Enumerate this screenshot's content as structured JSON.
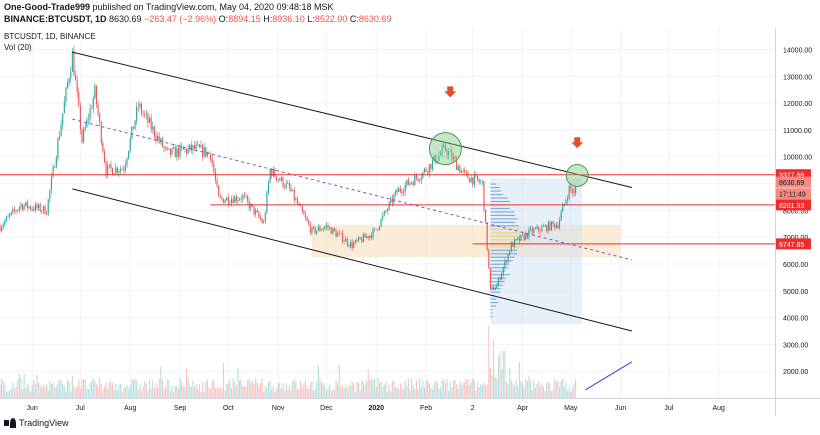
{
  "header": {
    "author": "One-Good-Trade999",
    "published": "published on TradingView.com, May 04, 2020 09:48:18 MSK",
    "symbol": "BINANCE:BTCUSDT, 1D",
    "last": "8630.69",
    "change": "−263.47 (−2.96%)",
    "o_label": "O:",
    "o_value": "8894.15",
    "h_label": "H:",
    "h_value": "8936.10",
    "l_label": "L:",
    "l_value": "8522.00",
    "c_label": "C:",
    "c_value": "8630.69"
  },
  "footer": {
    "brand": "TradingView"
  },
  "colors": {
    "up": "#26a69a",
    "down": "#ef5350",
    "channel": "#131722",
    "hline": "#ef2b2b",
    "box_orange": "#f5dcb5",
    "box_blue": "#cfe2f3",
    "circle": "#81c784",
    "arrow": "#e0502d",
    "dashed": "#7e57c2",
    "trend": "#3b3bd6"
  },
  "chart_data": {
    "type": "candlestick",
    "chart_title": "BTCUSDT, 1D, BINANCE",
    "volume_label": "Vol (20)",
    "y_ticks": [
      2000.0,
      3000.0,
      4000.0,
      5000.0,
      6000.0,
      7000.0,
      8000.0,
      9000.0,
      10000.0,
      11000.0,
      12000.0,
      13000.0,
      14000.0
    ],
    "y_tick_labels": [
      "2000.00",
      "3000.00",
      "4000.00",
      "5000.00",
      "6000.00",
      "7000.00",
      "8000.00",
      "9000.00",
      "10000.00",
      "11000.00",
      "12000.00",
      "13000.00",
      "14000.00"
    ],
    "x_ticks": [
      "2019-06-01",
      "2019-07-01",
      "2019-08-01",
      "2019-09-01",
      "2019-10-01",
      "2019-11-01",
      "2019-12-01",
      "2020-01-01",
      "2020-02-01",
      "2020-03-01",
      "2020-04-01",
      "2020-05-01",
      "2020-06-01",
      "2020-07-01",
      "2020-08-01"
    ],
    "x_tick_labels": [
      "Jun",
      "Jul",
      "Aug",
      "Sep",
      "Oct",
      "Nov",
      "Dec",
      "2020",
      "Feb",
      "2",
      "Apr",
      "May",
      "Jun",
      "Jul",
      "Aug"
    ],
    "ylim": [
      1000,
      14800
    ],
    "xlim": [
      "2019-05-12",
      "2020-09-05"
    ],
    "price_labels": [
      {
        "label": "9327.66",
        "value": 9327.66,
        "kind": "line"
      },
      {
        "label": "8630.69",
        "value": 9050,
        "kind": "last"
      },
      {
        "label": "17:11:49",
        "value": 8620,
        "kind": "timer"
      },
      {
        "label": "8201.93",
        "value": 8201.93,
        "kind": "line"
      },
      {
        "label": "6747.85",
        "value": 6747.85,
        "kind": "line"
      }
    ],
    "anchors": [
      {
        "date": "2019-05-12",
        "value": 7400
      },
      {
        "date": "2019-05-25",
        "value": 8200
      },
      {
        "date": "2019-06-10",
        "value": 8000
      },
      {
        "date": "2019-06-26",
        "value": 13800
      },
      {
        "date": "2019-07-02",
        "value": 10600
      },
      {
        "date": "2019-07-10",
        "value": 12400
      },
      {
        "date": "2019-07-17",
        "value": 9500
      },
      {
        "date": "2019-07-28",
        "value": 9600
      },
      {
        "date": "2019-08-06",
        "value": 11900
      },
      {
        "date": "2019-08-12",
        "value": 11300
      },
      {
        "date": "2019-08-24",
        "value": 10100
      },
      {
        "date": "2019-09-10",
        "value": 10300
      },
      {
        "date": "2019-09-20",
        "value": 10100
      },
      {
        "date": "2019-09-25",
        "value": 8400
      },
      {
        "date": "2019-10-10",
        "value": 8500
      },
      {
        "date": "2019-10-23",
        "value": 7500
      },
      {
        "date": "2019-10-27",
        "value": 9500
      },
      {
        "date": "2019-11-08",
        "value": 8800
      },
      {
        "date": "2019-11-22",
        "value": 7200
      },
      {
        "date": "2019-12-01",
        "value": 7400
      },
      {
        "date": "2019-12-17",
        "value": 6700
      },
      {
        "date": "2019-12-31",
        "value": 7200
      },
      {
        "date": "2020-01-14",
        "value": 8700
      },
      {
        "date": "2020-01-30",
        "value": 9400
      },
      {
        "date": "2020-02-13",
        "value": 10300
      },
      {
        "date": "2020-02-25",
        "value": 9300
      },
      {
        "date": "2020-03-07",
        "value": 9000
      },
      {
        "date": "2020-03-12",
        "value": 5000
      },
      {
        "date": "2020-03-16",
        "value": 5200
      },
      {
        "date": "2020-03-25",
        "value": 6700
      },
      {
        "date": "2020-04-06",
        "value": 7200
      },
      {
        "date": "2020-04-23",
        "value": 7500
      },
      {
        "date": "2020-04-30",
        "value": 8800
      },
      {
        "date": "2020-05-04",
        "value": 8630
      }
    ],
    "channel_upper": [
      {
        "date": "2019-06-26",
        "value": 13900
      },
      {
        "date": "2020-06-08",
        "value": 8850
      }
    ],
    "channel_lower": [
      {
        "date": "2019-06-26",
        "value": 8800
      },
      {
        "date": "2020-06-08",
        "value": 3500
      }
    ],
    "dashed_mid": [
      {
        "date": "2019-06-26",
        "value": 11400
      },
      {
        "date": "2020-06-08",
        "value": 6150
      }
    ],
    "hlines": [
      {
        "value": 9327.66,
        "from": "2019-05-12"
      },
      {
        "value": 8201.93,
        "from": "2019-09-20"
      },
      {
        "value": 6747.85,
        "from": "2020-03-01"
      }
    ],
    "boxes": [
      {
        "kind": "orange",
        "x0": "2019-11-22",
        "x1": "2020-06-01",
        "y0": 6250,
        "y1": 7450
      },
      {
        "kind": "blue",
        "x0": "2020-03-12",
        "x1": "2020-05-08",
        "y0": 3750,
        "y1": 9200
      }
    ],
    "circles": [
      {
        "date": "2020-02-13",
        "value": 10300
      },
      {
        "date": "2020-05-05",
        "value": 9300
      }
    ],
    "arrows": [
      {
        "date": "2020-02-16",
        "value": 12400
      },
      {
        "date": "2020-05-05",
        "value": 10500
      }
    ],
    "trend_line": [
      {
        "date": "2020-05-10",
        "value": 1300
      },
      {
        "date": "2020-06-08",
        "value": 2350
      }
    ]
  }
}
